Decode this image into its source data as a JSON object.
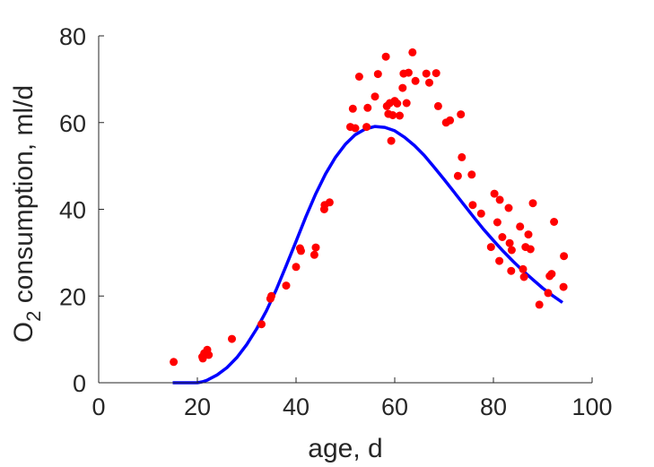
{
  "chart_data": {
    "type": "scatter",
    "xlabel": "age, d",
    "ylabel": {
      "prefix": "O",
      "subscript": "2",
      "suffix": " consumption, ml/d"
    },
    "xlim": [
      0,
      100
    ],
    "ylim": [
      0,
      80
    ],
    "xticks": [
      0,
      20,
      40,
      60,
      80,
      100
    ],
    "yticks": [
      0,
      20,
      40,
      60,
      80
    ],
    "grid": false,
    "colors": {
      "points": "#ff0000",
      "curve": "#0000ff",
      "axis": "#262626"
    },
    "series": [
      {
        "kind": "scatter",
        "points": [
          [
            15.2,
            4.8
          ],
          [
            21.0,
            6.0
          ],
          [
            21.1,
            5.6
          ],
          [
            21.4,
            6.8
          ],
          [
            22.0,
            7.6
          ],
          [
            22.3,
            6.4
          ],
          [
            27.0,
            10.1
          ],
          [
            33.0,
            13.5
          ],
          [
            34.8,
            19.4
          ],
          [
            35.0,
            20.0
          ],
          [
            38.0,
            22.4
          ],
          [
            40.0,
            26.7
          ],
          [
            40.8,
            31.0
          ],
          [
            41.0,
            30.4
          ],
          [
            43.7,
            29.5
          ],
          [
            44.0,
            31.2
          ],
          [
            45.7,
            40.0
          ],
          [
            45.8,
            41.0
          ],
          [
            46.8,
            41.6
          ],
          [
            51.0,
            59.0
          ],
          [
            51.5,
            63.2
          ],
          [
            52.0,
            58.7
          ],
          [
            52.8,
            70.6
          ],
          [
            54.3,
            59.0
          ],
          [
            54.5,
            63.4
          ],
          [
            56.0,
            66.0
          ],
          [
            56.6,
            71.2
          ],
          [
            58.2,
            75.2
          ],
          [
            58.4,
            63.8
          ],
          [
            58.7,
            62.0
          ],
          [
            59.0,
            64.5
          ],
          [
            59.3,
            55.8
          ],
          [
            59.6,
            61.7
          ],
          [
            60.0,
            65.0
          ],
          [
            60.5,
            64.4
          ],
          [
            61.0,
            61.6
          ],
          [
            61.6,
            68.0
          ],
          [
            61.8,
            71.3
          ],
          [
            62.4,
            64.5
          ],
          [
            62.8,
            71.5
          ],
          [
            63.6,
            76.2
          ],
          [
            64.2,
            69.6
          ],
          [
            66.4,
            71.3
          ],
          [
            67.0,
            69.2
          ],
          [
            68.4,
            71.4
          ],
          [
            68.8,
            63.8
          ],
          [
            70.4,
            60.0
          ],
          [
            71.2,
            60.5
          ],
          [
            72.8,
            47.7
          ],
          [
            73.4,
            61.9
          ],
          [
            73.6,
            52.0
          ],
          [
            75.6,
            48.0
          ],
          [
            75.8,
            41.0
          ],
          [
            77.5,
            39.0
          ],
          [
            79.5,
            31.3
          ],
          [
            80.2,
            43.6
          ],
          [
            80.8,
            37.0
          ],
          [
            81.2,
            28.1
          ],
          [
            81.3,
            42.2
          ],
          [
            81.8,
            33.6
          ],
          [
            83.1,
            40.3
          ],
          [
            83.3,
            32.2
          ],
          [
            83.6,
            25.8
          ],
          [
            83.7,
            30.6
          ],
          [
            85.4,
            36.0
          ],
          [
            86.0,
            26.2
          ],
          [
            86.2,
            24.4
          ],
          [
            86.5,
            31.3
          ],
          [
            87.1,
            34.2
          ],
          [
            87.5,
            30.8
          ],
          [
            88.0,
            41.4
          ],
          [
            89.3,
            18.0
          ],
          [
            91.1,
            20.7
          ],
          [
            91.4,
            24.6
          ],
          [
            91.8,
            25.1
          ],
          [
            92.3,
            37.1
          ],
          [
            94.2,
            22.1
          ],
          [
            94.3,
            29.2
          ]
        ]
      },
      {
        "kind": "line",
        "points": [
          [
            15,
            0.0
          ],
          [
            18,
            0.0
          ],
          [
            20,
            0.0
          ],
          [
            21,
            0.2
          ],
          [
            22,
            0.6
          ],
          [
            24,
            1.8
          ],
          [
            26,
            3.5
          ],
          [
            28,
            5.8
          ],
          [
            30,
            8.8
          ],
          [
            32,
            12.4
          ],
          [
            34,
            16.6
          ],
          [
            36,
            21.5
          ],
          [
            38,
            27.0
          ],
          [
            40,
            32.6
          ],
          [
            42,
            38.3
          ],
          [
            44,
            43.6
          ],
          [
            46,
            48.2
          ],
          [
            48,
            52.0
          ],
          [
            50,
            55.0
          ],
          [
            52,
            57.2
          ],
          [
            54,
            58.5
          ],
          [
            56,
            59.1
          ],
          [
            58,
            58.9
          ],
          [
            60,
            58.1
          ],
          [
            62,
            56.6
          ],
          [
            64,
            54.7
          ],
          [
            66,
            52.4
          ],
          [
            68,
            49.7
          ],
          [
            70,
            46.9
          ],
          [
            72,
            44.0
          ],
          [
            74,
            41.1
          ],
          [
            76,
            38.2
          ],
          [
            78,
            35.4
          ],
          [
            80,
            32.8
          ],
          [
            82,
            30.3
          ],
          [
            84,
            28.0
          ],
          [
            86,
            25.8
          ],
          [
            88,
            23.8
          ],
          [
            90,
            21.8
          ],
          [
            92,
            20.1
          ],
          [
            94,
            18.5
          ]
        ]
      }
    ]
  }
}
